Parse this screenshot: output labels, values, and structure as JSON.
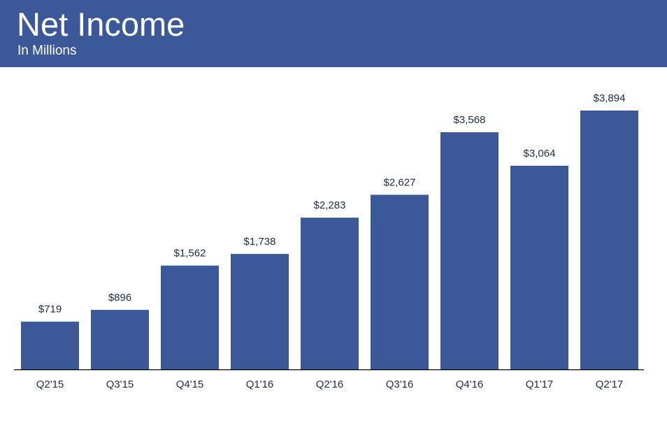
{
  "header": {
    "title": "Net Income",
    "subtitle": "In Millions"
  },
  "colors": {
    "header_bg": "#3b5998",
    "bar": "#3b5998",
    "label_text": "#1d2a44",
    "axis_line": "#000000"
  },
  "chart_data": {
    "type": "bar",
    "title": "Net Income",
    "subtitle": "In Millions",
    "xlabel": "",
    "ylabel": "",
    "categories": [
      "Q2'15",
      "Q3'15",
      "Q4'15",
      "Q1'16",
      "Q2'16",
      "Q3'16",
      "Q4'16",
      "Q1'17",
      "Q2'17"
    ],
    "values": [
      719,
      896,
      1562,
      1738,
      2283,
      2627,
      3568,
      3064,
      3894
    ],
    "value_labels": [
      "$719",
      "$896",
      "$1,562",
      "$1,738",
      "$2,283",
      "$2,627",
      "$3,568",
      "$3,064",
      "$3,894"
    ],
    "ylim": [
      0,
      3894
    ],
    "grid": false,
    "legend": "none"
  }
}
